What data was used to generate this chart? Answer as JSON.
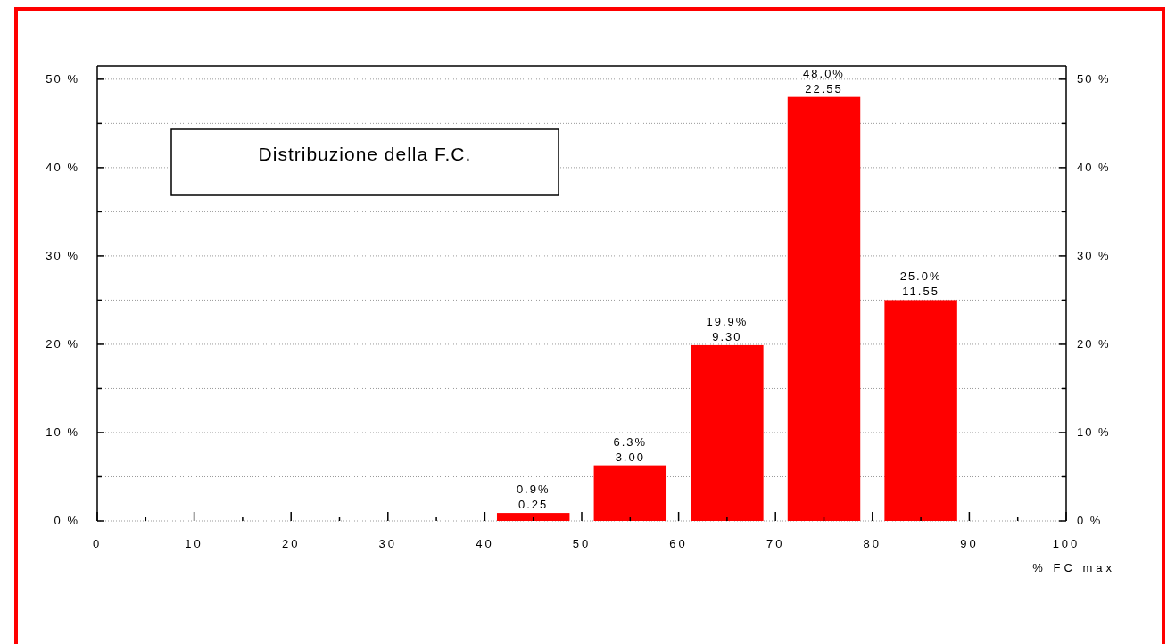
{
  "chart_data": {
    "type": "bar",
    "title": "Distribuzione della F.C.",
    "xlabel": "% FC max",
    "x": [
      45,
      55,
      65,
      75,
      85
    ],
    "values": [
      0.9,
      6.3,
      19.9,
      48.0,
      25.0
    ],
    "value_labels": [
      "0.9%",
      "6.3%",
      "19.9%",
      "48.0%",
      "25.0%"
    ],
    "annotations": [
      {
        "text": "0.25",
        "x": 45,
        "y": 0.9
      },
      {
        "text": "3.00",
        "x": 55,
        "y": 6.3
      },
      {
        "text": "9.30",
        "x": 65,
        "y": 19.9
      },
      {
        "text": "22.55",
        "x": 75,
        "y": 48.0
      },
      {
        "text": "11.55",
        "x": 85,
        "y": 25.0
      }
    ],
    "color": "#ff0000",
    "xlim": [
      0,
      100
    ],
    "xticks": [
      0,
      {
        "value": 5,
        "label": null
      },
      10,
      {
        "value": 15,
        "label": null
      },
      20,
      {
        "value": 25,
        "label": null
      },
      30,
      {
        "value": 35,
        "label": null
      },
      40,
      {
        "value": 45,
        "label": null
      },
      50,
      {
        "value": 55,
        "label": null
      },
      60,
      {
        "value": 65,
        "label": null
      },
      70,
      {
        "value": 75,
        "label": null
      },
      80,
      {
        "value": 85,
        "label": null
      },
      90,
      {
        "value": 95,
        "label": null
      },
      100
    ],
    "ylim": [
      0,
      51.5
    ],
    "yticks": [
      {
        "value": 0,
        "label": "0 %"
      },
      {
        "value": 5,
        "label": null
      },
      {
        "value": 10,
        "label": "10 %"
      },
      {
        "value": 15,
        "label": null
      },
      {
        "value": 20,
        "label": "20 %"
      },
      {
        "value": 25,
        "label": null
      },
      {
        "value": 30,
        "label": "30 %"
      },
      {
        "value": 35,
        "label": null
      },
      {
        "value": 40,
        "label": "40 %"
      },
      {
        "value": 45,
        "label": null
      },
      {
        "value": 50,
        "label": "50 %"
      }
    ],
    "y2lim": [
      0,
      51.5
    ],
    "y2ticks": [
      {
        "value": 0,
        "label": "0 %"
      },
      {
        "value": 5,
        "label": null
      },
      {
        "value": 10,
        "label": "10 %"
      },
      {
        "value": 15,
        "label": null
      },
      {
        "value": 20,
        "label": "20 %"
      },
      {
        "value": 25,
        "label": null
      },
      {
        "value": 30,
        "label": "30 %"
      },
      {
        "value": 35,
        "label": null
      },
      {
        "value": 40,
        "label": "40 %"
      },
      {
        "value": 45,
        "label": null
      },
      {
        "value": 50,
        "label": "50 %"
      }
    ],
    "grid": "y"
  }
}
